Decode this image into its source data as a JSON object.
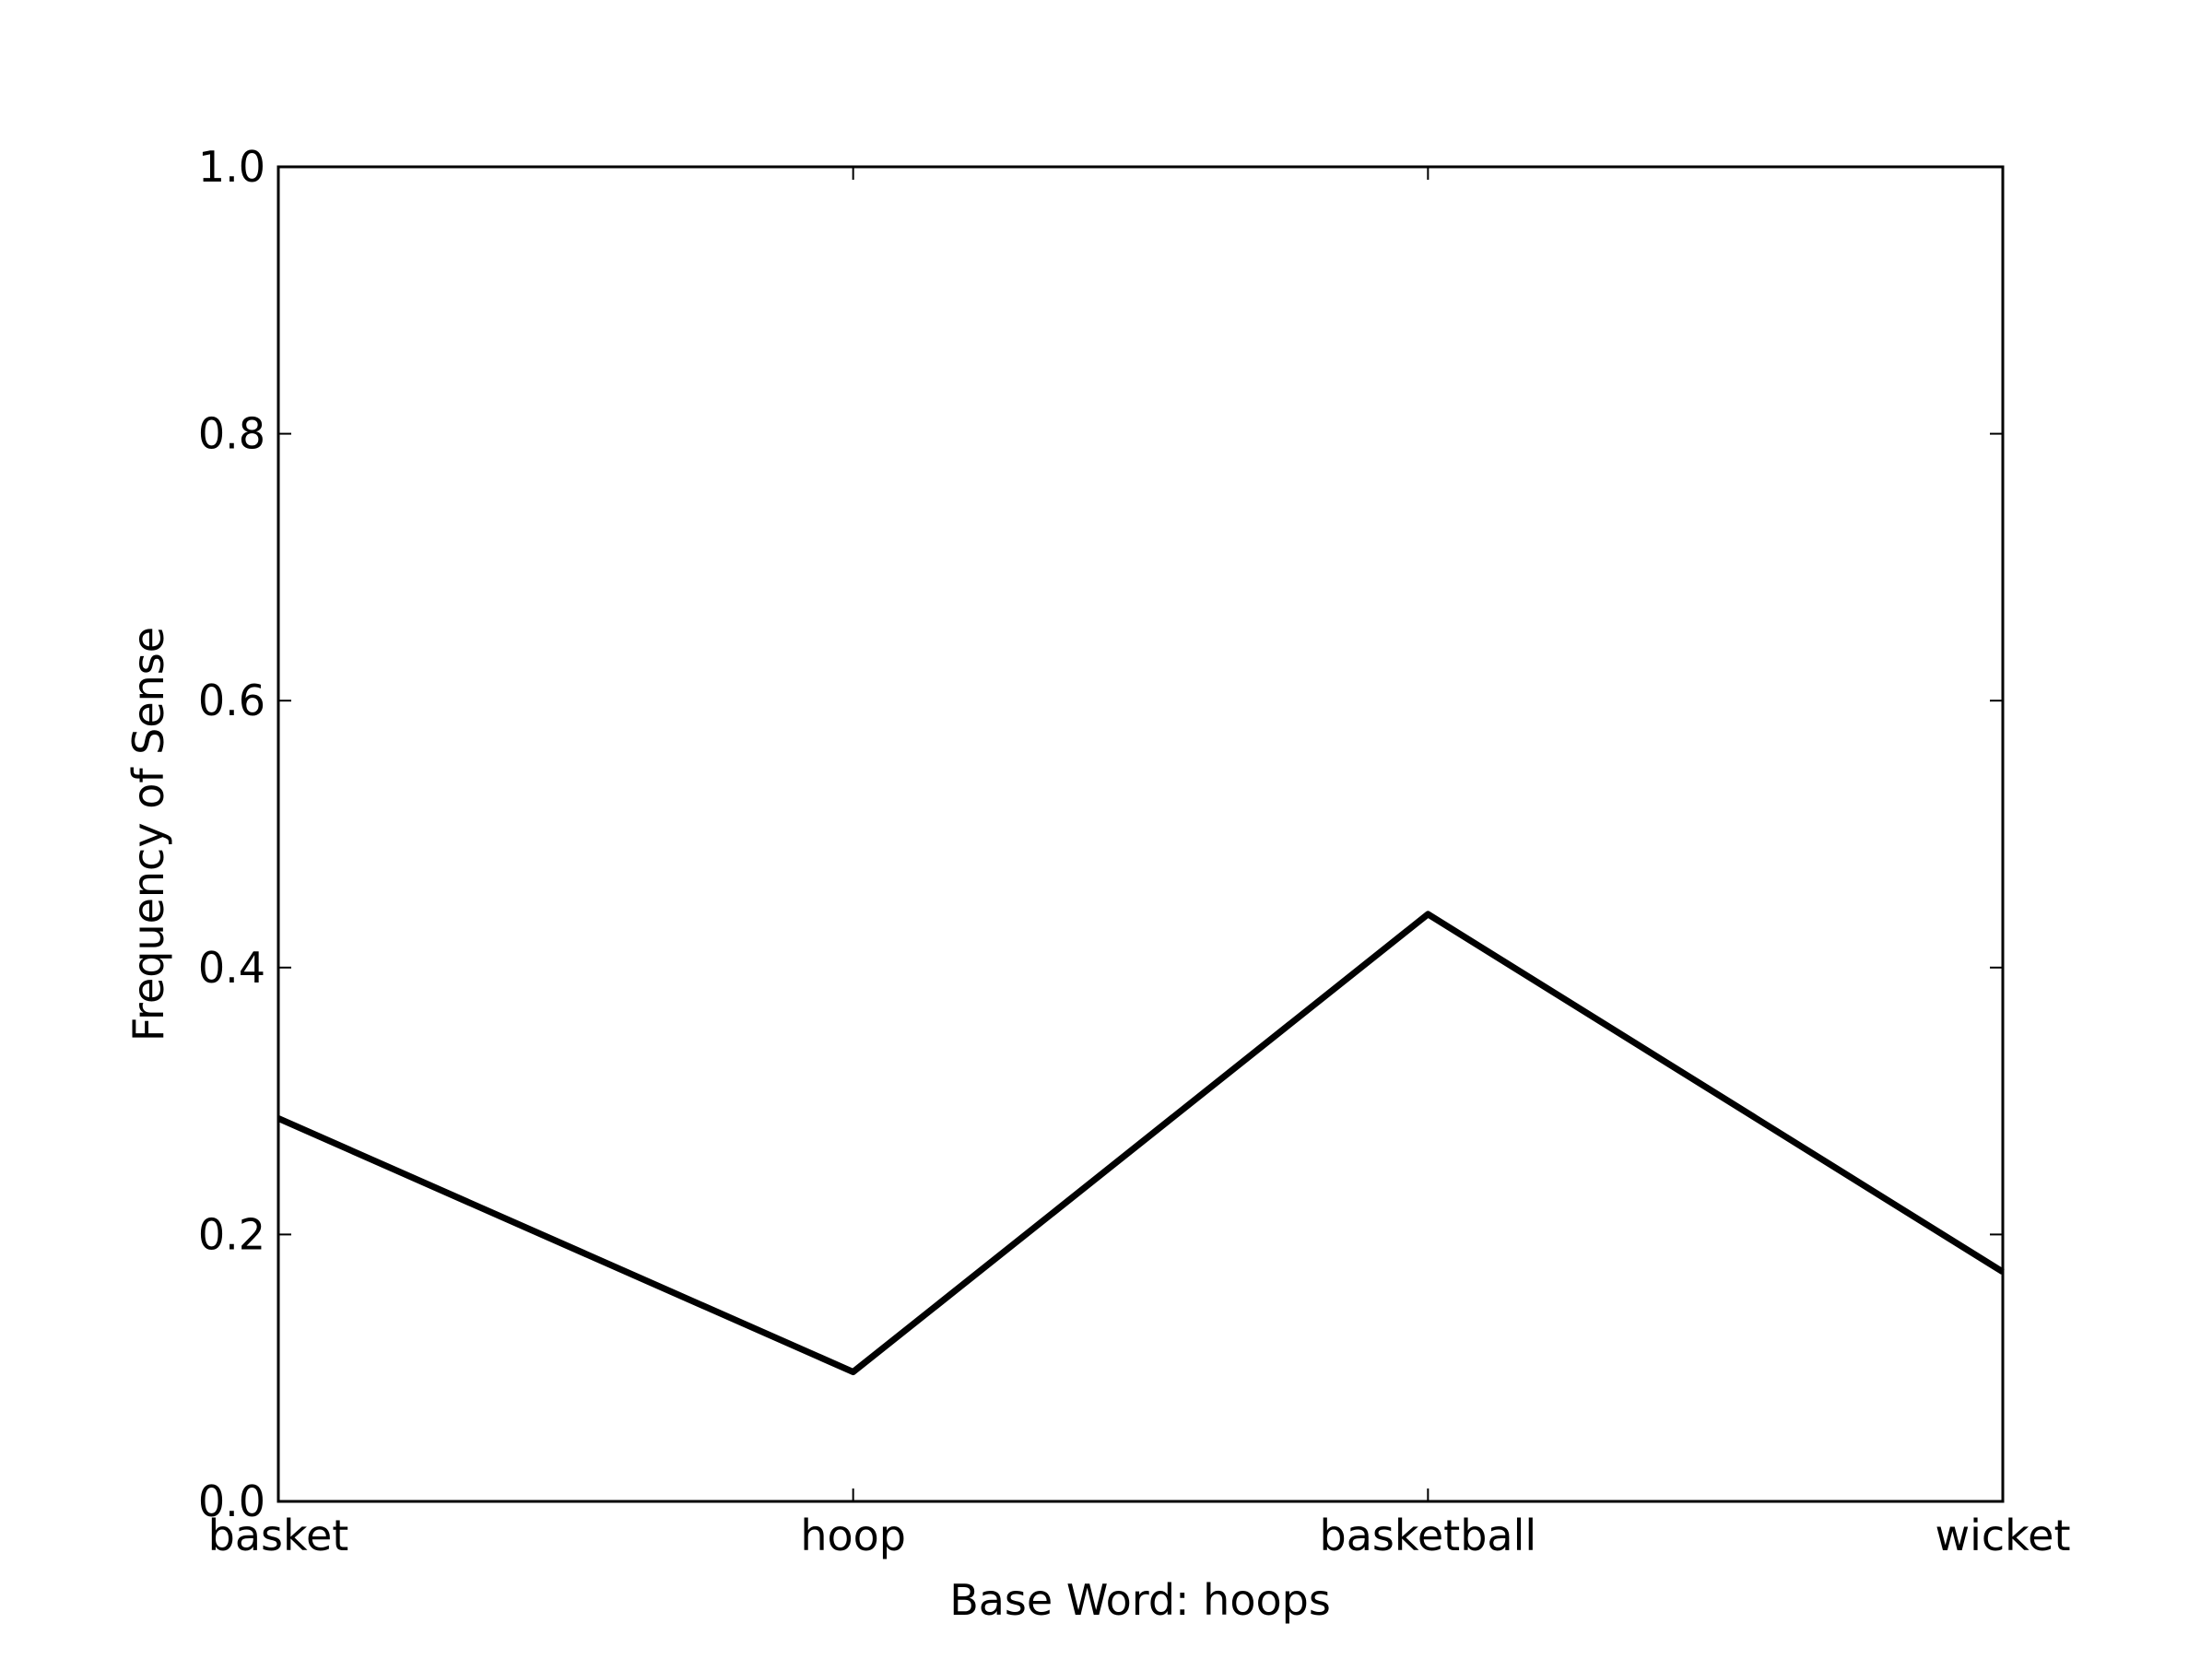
{
  "chart_data": {
    "type": "line",
    "title": "",
    "xlabel": "Base Word: hoops",
    "ylabel": "Frequency of Sense",
    "categories": [
      "basket",
      "hoop",
      "basketball",
      "wicket"
    ],
    "series": [
      {
        "values": [
          0.287,
          0.097,
          0.44,
          0.172
        ]
      }
    ],
    "ylim": [
      0,
      1
    ],
    "yticks": [
      "0.0",
      "0.2",
      "0.4",
      "0.6",
      "0.8",
      "1.0"
    ],
    "grid": false,
    "line_color": "#000000"
  }
}
